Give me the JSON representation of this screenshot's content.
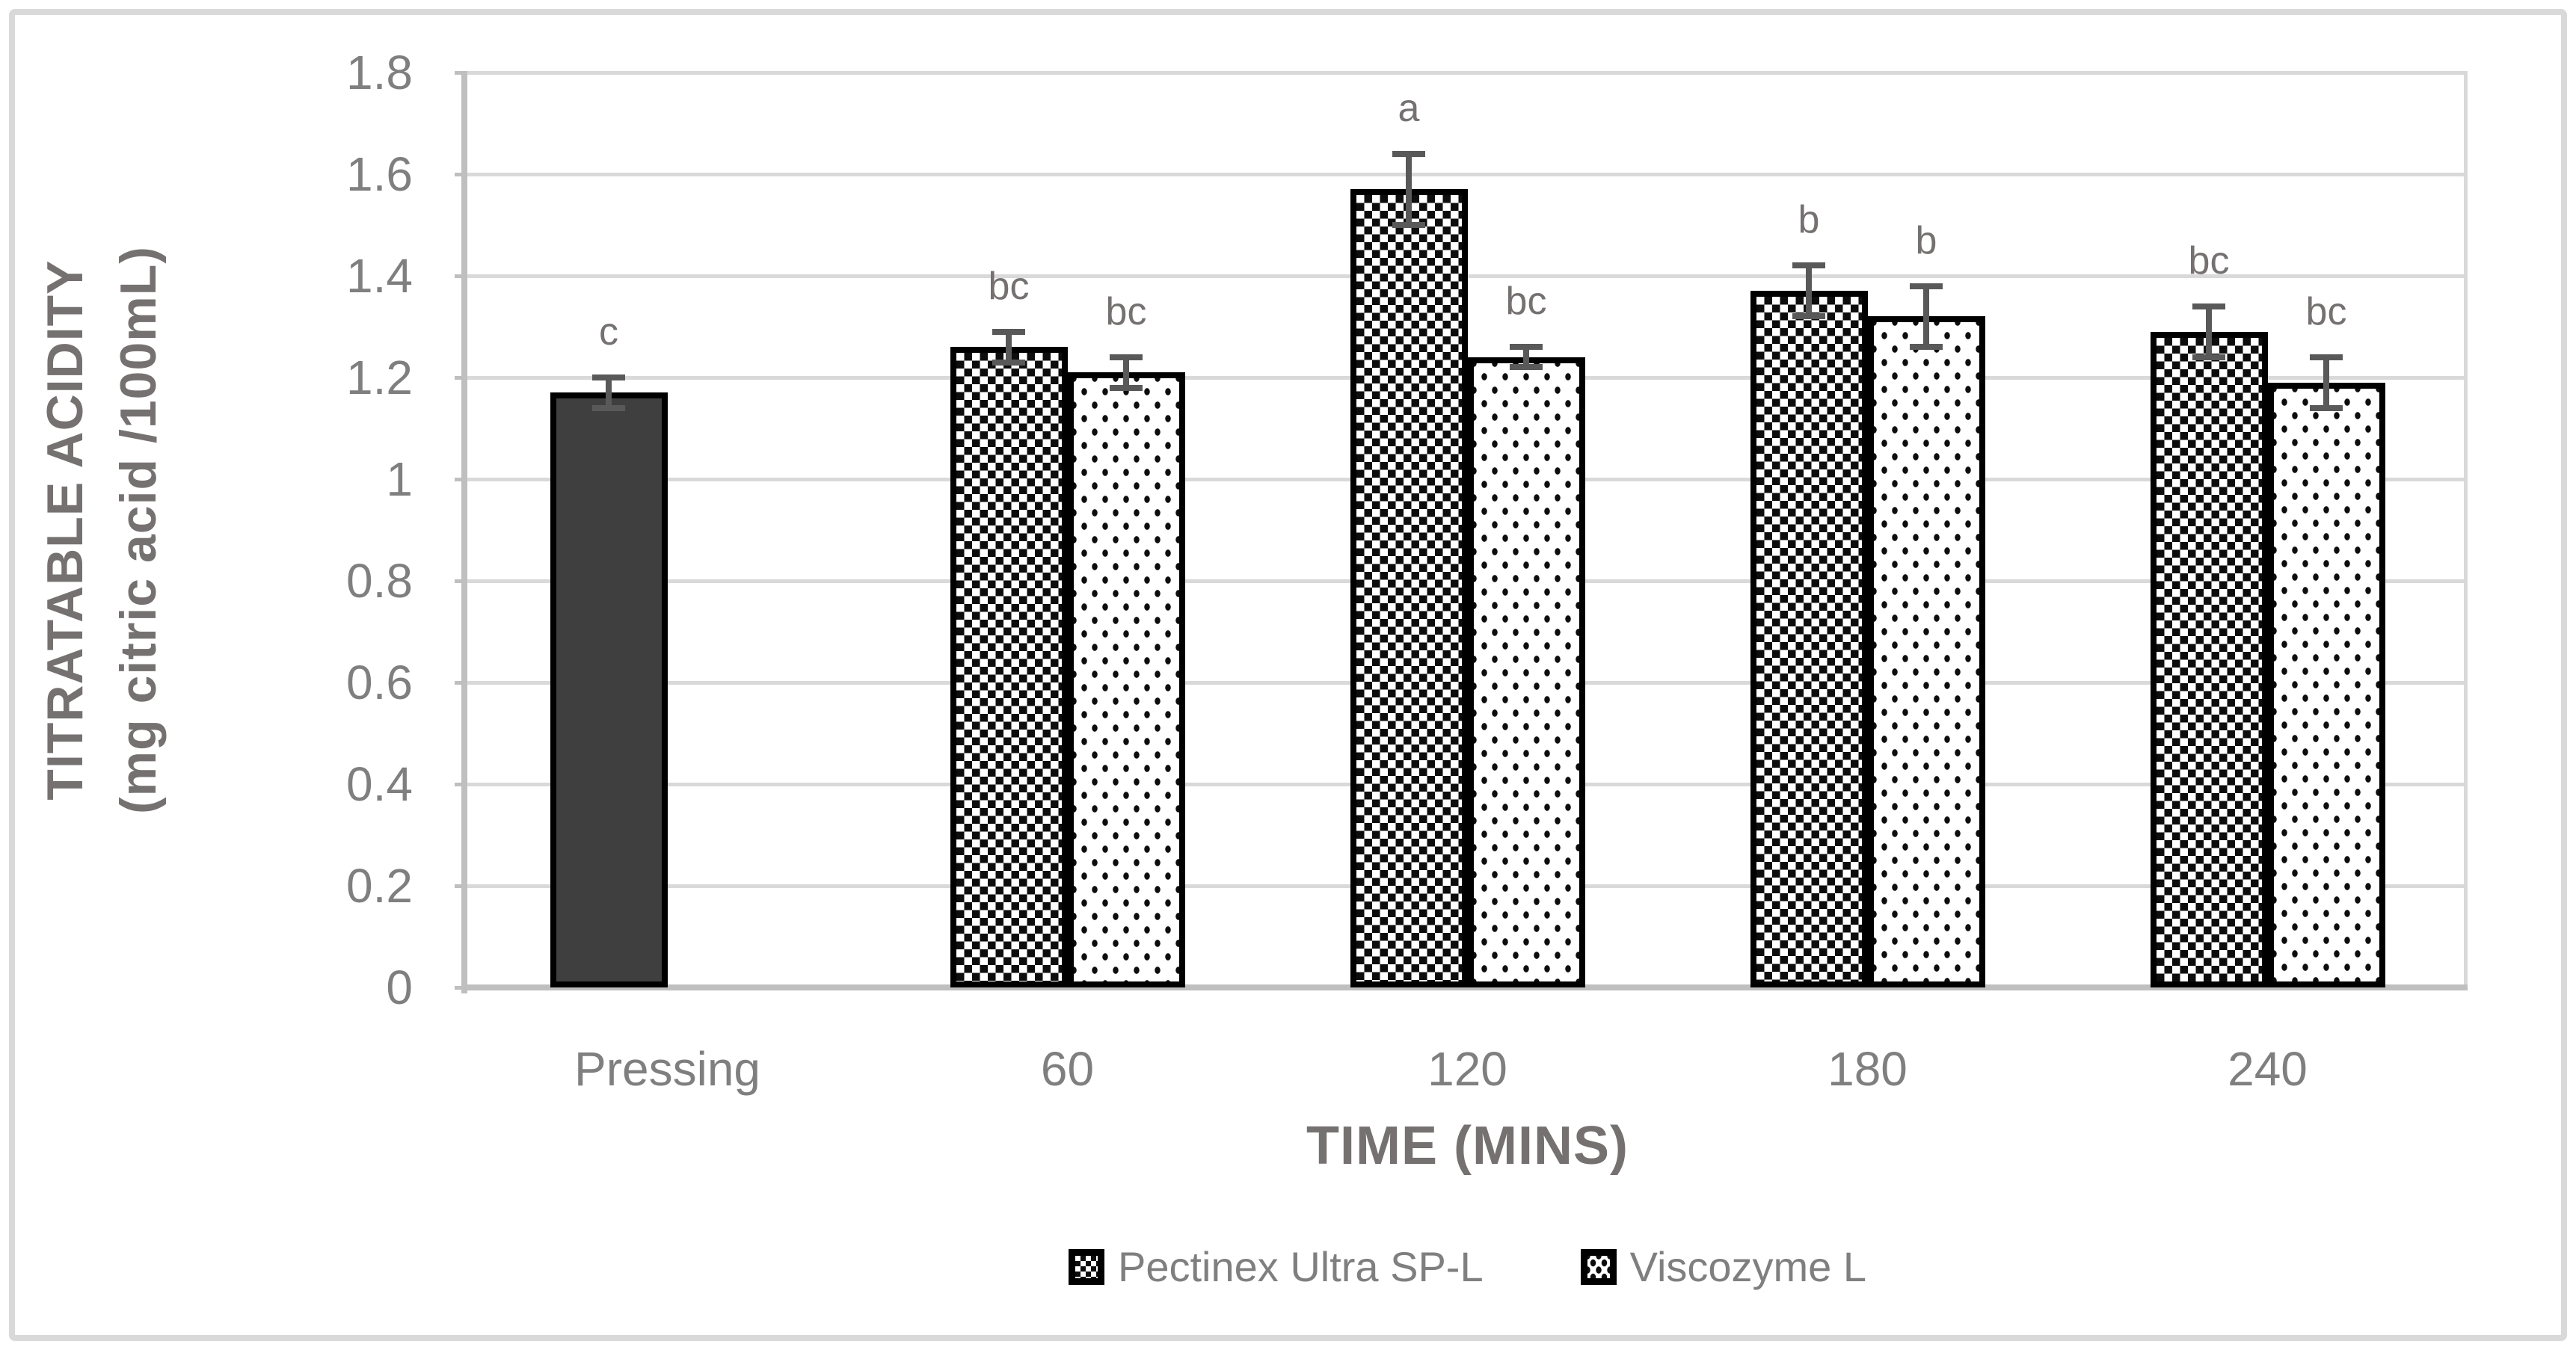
{
  "figure": {
    "background": "#ffffff",
    "border_color": "#d9d9d9"
  },
  "chart_data": {
    "type": "bar",
    "title": "",
    "xlabel": "TIME (MINS)",
    "ylabel": "TITRATABLE ACIDITY (mg citric acid /100mL)",
    "ylabel_lines": [
      "TITRATABLE ACIDITY",
      "(mg citric acid /100mL)"
    ],
    "ylim": [
      0,
      1.8
    ],
    "ytick_step": 0.2,
    "ytick_values": [
      0,
      0.2,
      0.4,
      0.6,
      0.8,
      1.0,
      1.2,
      1.4,
      1.6,
      1.8
    ],
    "ytick_labels": [
      "0",
      "0.2",
      "0.4",
      "0.6",
      "0.8",
      "1",
      "1.2",
      "1.4",
      "1.6",
      "1.8"
    ],
    "categories": [
      "Pressing",
      "60",
      "120",
      "180",
      "240"
    ],
    "grid": true,
    "legend_position": "bottom",
    "series": [
      {
        "name": "Pectinex Ultra SP-L",
        "key": "pectinex-ultra-sp-l",
        "fill": "diamond-checker-pattern",
        "values": [
          null,
          1.26,
          1.57,
          1.37,
          1.29
        ],
        "errors": [
          null,
          0.03,
          0.07,
          0.05,
          0.05
        ],
        "sig_letters": [
          null,
          "bc",
          "a",
          "b",
          "bc"
        ]
      },
      {
        "name": "Viscozyme L",
        "key": "viscozyme-l",
        "fill": "dots-pattern",
        "values": [
          null,
          1.21,
          1.24,
          1.32,
          1.19
        ],
        "errors": [
          null,
          0.03,
          0.02,
          0.06,
          0.05
        ],
        "sig_letters": [
          null,
          "bc",
          "bc",
          "b",
          "bc"
        ]
      }
    ],
    "control_bar": {
      "category": "Pressing",
      "category_index": 0,
      "series_slot": 0,
      "key": "pressing",
      "value": 1.17,
      "error": 0.03,
      "sig_letter": "c",
      "fill": "solid-dark"
    },
    "colors": {
      "bar_dark_fill": "#3f3f3f",
      "pattern_ink": "#0d0d0d",
      "bar_border": "#000000",
      "gridline": "#d9d9d9",
      "axis_line": "#bfbfbf",
      "tick_text": "#7f7f7f",
      "title_text": "#767171",
      "error_bar": "#595959",
      "figure_border": "#d9d9d9"
    }
  }
}
